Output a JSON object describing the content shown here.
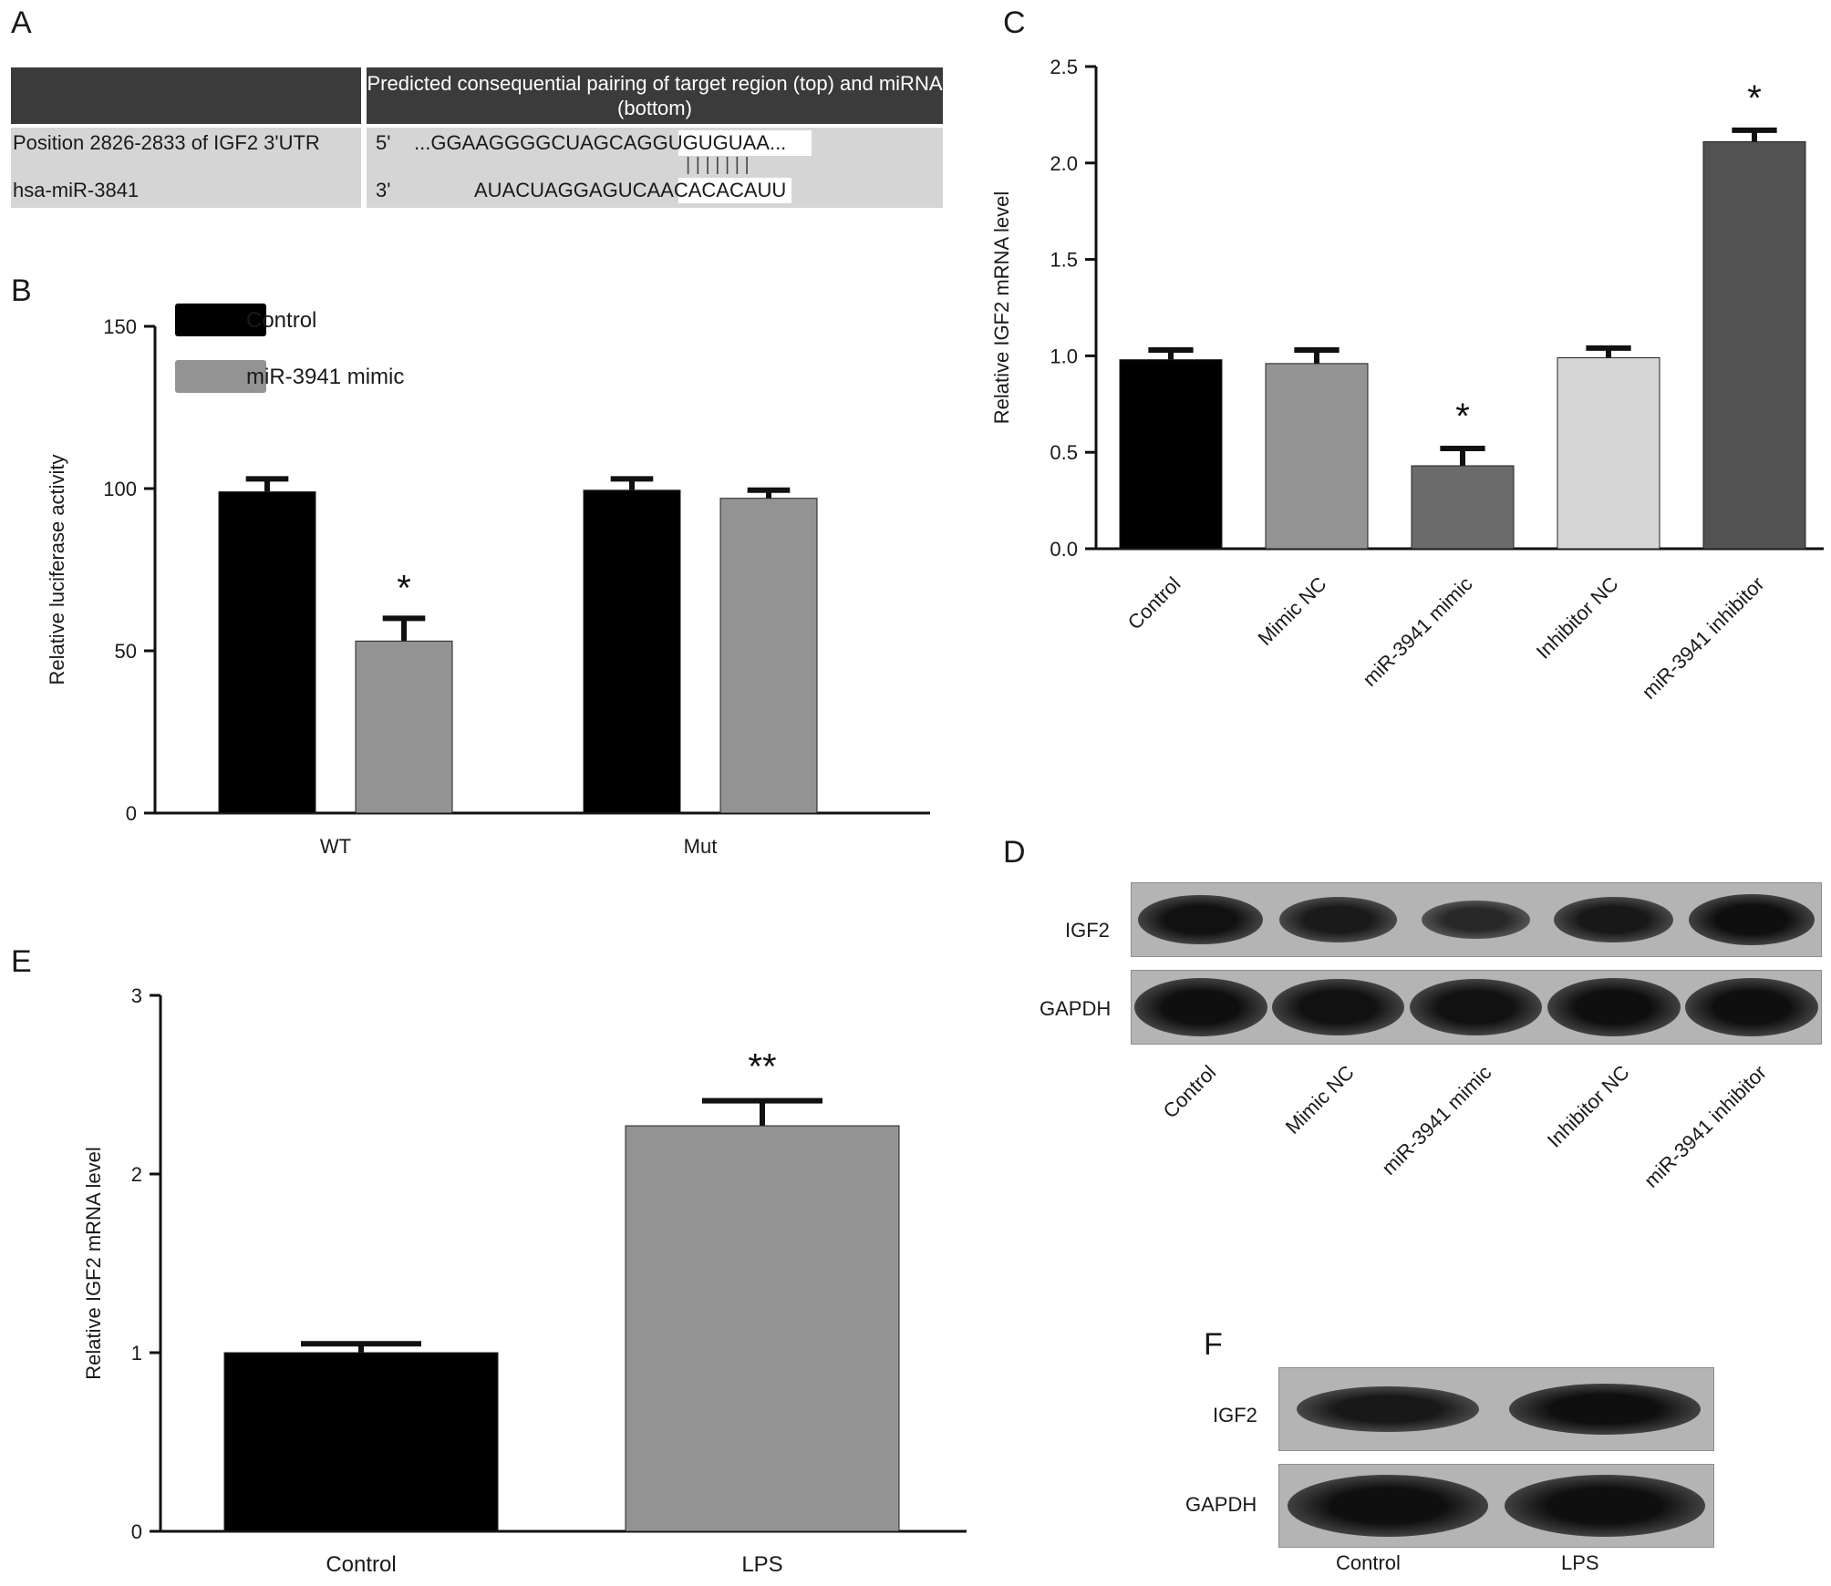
{
  "panels": {
    "A": "A",
    "B": "B",
    "C": "C",
    "D": "D",
    "E": "E",
    "F": "F"
  },
  "panelA": {
    "header": "Predicted consequential pairing of target region (top) and miRNA (bottom)",
    "row1_label": "Position 2826-2833 of IGF2 3'UTR",
    "row1_prime": "5'",
    "row1_seq_pre": "...GGAAGGGGCUAGCAG",
    "row1_seq_match": "GUGUGUAA",
    "row1_seq_post": "...",
    "pair_bars": "| | | | | | |",
    "row2_label": "hsa-miR-3841",
    "row2_prime": "3'",
    "row2_seq_pre": "AUACUAGGAGUCAA",
    "row2_seq_match": "CACACAUU"
  },
  "chart_data": [
    {
      "id": "B",
      "type": "bar",
      "ylabel": "Relative luciferase activity",
      "ylim": [
        0,
        150
      ],
      "yticks": [
        0,
        50,
        100,
        150
      ],
      "categories": [
        "WT",
        "Mut"
      ],
      "legend_position": "top-left",
      "series": [
        {
          "name": "Control",
          "color": "#000000",
          "values": [
            99,
            99.5
          ],
          "errors": [
            4,
            3.5
          ]
        },
        {
          "name": "miR-3941 mimic",
          "color": "#939393",
          "values": [
            53,
            97
          ],
          "errors": [
            7,
            2.5
          ]
        }
      ],
      "annotations": [
        {
          "category": "WT",
          "series": "miR-3941 mimic",
          "text": "*"
        }
      ]
    },
    {
      "id": "C",
      "type": "bar",
      "ylabel": "Relative IGF2 mRNA level",
      "ylim": [
        0,
        2.5
      ],
      "yticks": [
        "0.0",
        "0.5",
        "1.0",
        "1.5",
        "2.0",
        "2.5"
      ],
      "categories": [
        "Control",
        "Mimic NC",
        "miR-3941 mimic",
        "Inhibitor NC",
        "miR-3941 inhibitor"
      ],
      "colors": [
        "#000000",
        "#939393",
        "#6b6b6b",
        "#d6d6d6",
        "#525252"
      ],
      "values": [
        0.98,
        0.96,
        0.43,
        0.99,
        2.11
      ],
      "errors": [
        0.05,
        0.07,
        0.09,
        0.05,
        0.06
      ],
      "annotations": [
        {
          "category": "miR-3941 mimic",
          "text": "*"
        },
        {
          "category": "miR-3941 inhibitor",
          "text": "*"
        }
      ]
    },
    {
      "id": "E",
      "type": "bar",
      "ylabel": "Relative IGF2 mRNA level",
      "ylim": [
        0,
        3
      ],
      "yticks": [
        0,
        1,
        2,
        3
      ],
      "categories": [
        "Control",
        "LPS"
      ],
      "colors": [
        "#000000",
        "#939393"
      ],
      "values": [
        1.0,
        2.27
      ],
      "errors": [
        0.05,
        0.14
      ],
      "annotations": [
        {
          "category": "LPS",
          "text": "**"
        }
      ]
    }
  ],
  "panelD": {
    "rows": [
      "IGF2",
      "GAPDH"
    ],
    "lanes": [
      "Control",
      "Mimic NC",
      "miR-3941 mimic",
      "Inhibitor NC",
      "miR-3941 inhibitor"
    ],
    "igf2_intensity": [
      0.95,
      0.75,
      0.45,
      0.8,
      1.0
    ],
    "gapdh_intensity": [
      1.0,
      0.95,
      0.95,
      1.0,
      1.0
    ]
  },
  "panelF": {
    "rows": [
      "IGF2",
      "GAPDH"
    ],
    "lanes": [
      "Control",
      "LPS"
    ],
    "igf2_intensity": [
      0.8,
      1.0
    ],
    "gapdh_intensity": [
      1.0,
      1.0
    ]
  }
}
